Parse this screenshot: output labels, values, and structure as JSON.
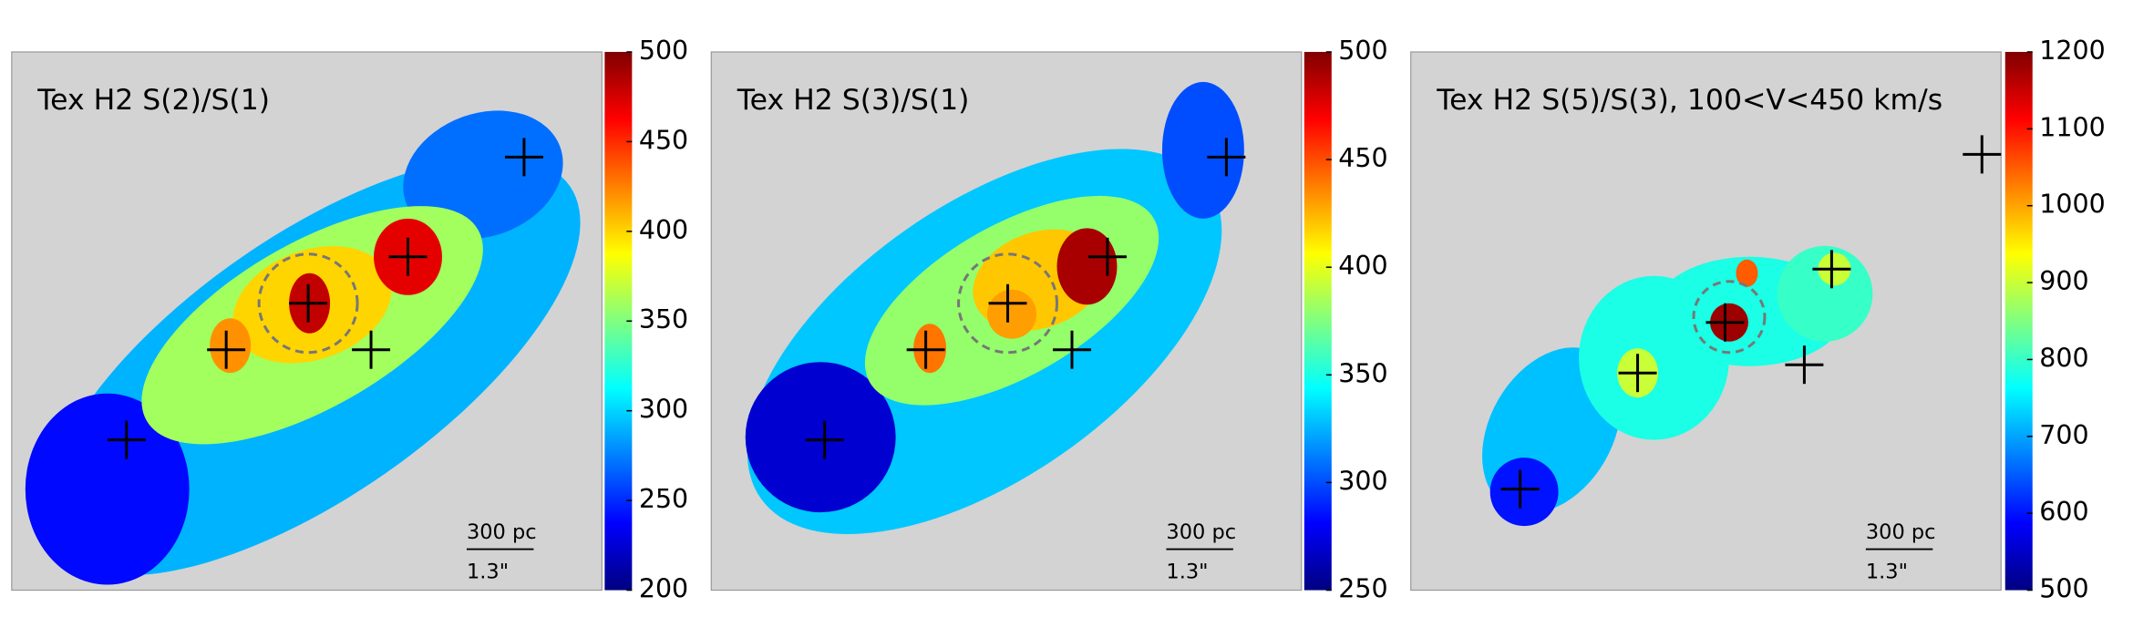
{
  "chart_data": [
    {
      "type": "heatmap",
      "title": "Tex H2 S(2)/S(1)",
      "colormap": "jet",
      "clim": [
        200,
        500
      ],
      "cticks": [
        200,
        250,
        300,
        350,
        400,
        450,
        500
      ],
      "values": [
        290,
        240,
        270,
        360,
        400,
        480,
        470,
        420
      ],
      "scale_bar": [
        "300 pc",
        "1.3\""
      ]
    },
    {
      "type": "heatmap",
      "title": "Tex H2 S(3)/S(1)",
      "colormap": "jet",
      "clim": [
        250,
        500
      ],
      "cticks": [
        250,
        300,
        350,
        400,
        450,
        500
      ],
      "values": [
        330,
        270,
        300,
        380,
        420,
        490,
        440,
        430
      ],
      "scale_bar": [
        "300 pc",
        "1.3\""
      ]
    },
    {
      "type": "heatmap",
      "title": "Tex H2 S(5)/S(3), 100<V<450 km/s",
      "colormap": "jet",
      "clim": [
        500,
        1200
      ],
      "cticks": [
        500,
        600,
        700,
        800,
        900,
        1000,
        1100,
        1200
      ],
      "values": [
        720,
        780,
        780,
        800,
        600,
        900,
        1180,
        1050,
        900
      ],
      "scale_bar": [
        "300 pc",
        "1.3\""
      ]
    }
  ]
}
